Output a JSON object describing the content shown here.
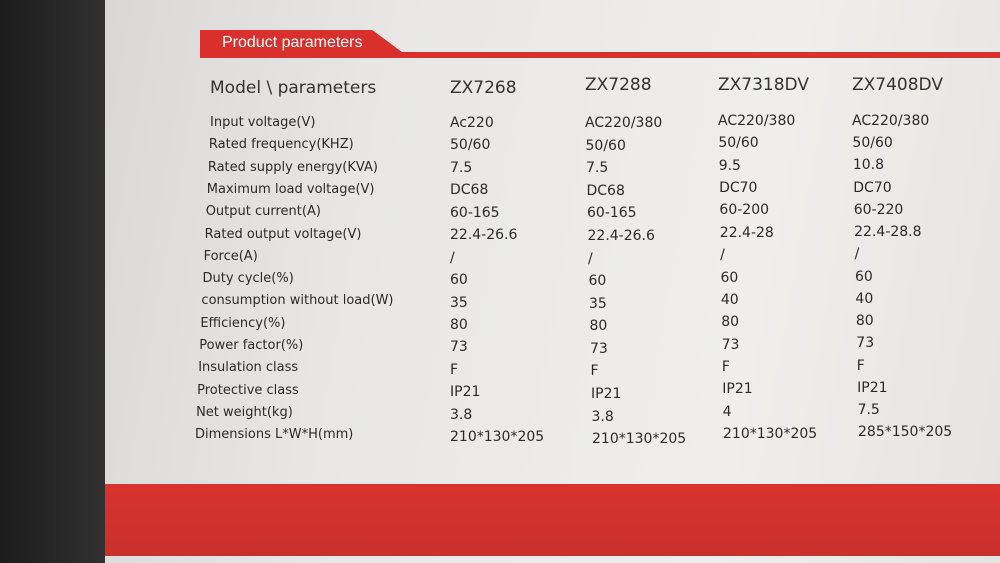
{
  "header": {
    "title": "Product parameters"
  },
  "table": {
    "columns": [
      "Model \\ parameters",
      "ZX7268",
      "ZX7288",
      "ZX7318DV",
      "ZX7408DV"
    ],
    "rows": [
      [
        "Input voltage(V)",
        "Ac220",
        "AC220/380",
        "AC220/380",
        "AC220/380"
      ],
      [
        "Rated frequency(KHZ)",
        "50/60",
        "50/60",
        "50/60",
        "50/60"
      ],
      [
        "Rated supply energy(KVA)",
        "7.5",
        "7.5",
        "9.5",
        "10.8"
      ],
      [
        "Maximum load voltage(V)",
        "DC68",
        "DC68",
        "DC70",
        "DC70"
      ],
      [
        "Output current(A)",
        "60-165",
        "60-165",
        "60-200",
        "60-220"
      ],
      [
        "Rated output voltage(V)",
        "22.4-26.6",
        "22.4-26.6",
        "22.4-28",
        "22.4-28.8"
      ],
      [
        "Force(A)",
        "/",
        "/",
        "/",
        "/"
      ],
      [
        "Duty cycle(%)",
        "60",
        "60",
        "60",
        "60"
      ],
      [
        "consumption without load(W)",
        "35",
        "35",
        "40",
        "40"
      ],
      [
        "Efficiency(%)",
        "80",
        "80",
        "80",
        "80"
      ],
      [
        "Power factor(%)",
        "73",
        "73",
        "73",
        "73"
      ],
      [
        "Insulation class",
        "F",
        "F",
        "F",
        "F"
      ],
      [
        "Protective class",
        "IP21",
        "IP21",
        "IP21",
        "IP21"
      ],
      [
        "Net weight(kg)",
        "3.8",
        "3.8",
        "4",
        "7.5"
      ],
      [
        "Dimensions L*W*H(mm)",
        "210*130*205",
        "210*130*205",
        "210*130*205",
        "285*150*205"
      ]
    ]
  }
}
